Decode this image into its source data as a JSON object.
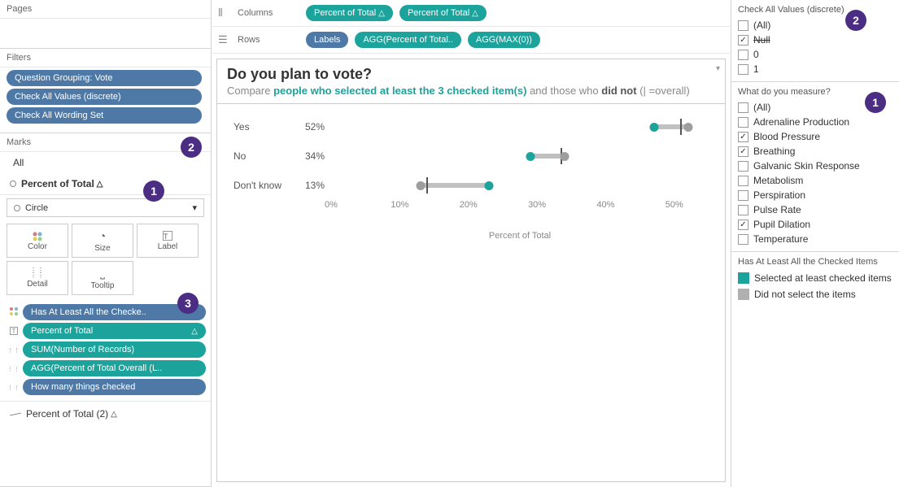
{
  "shelves": {
    "pages_label": "Pages",
    "filters_label": "Filters",
    "marks_label": "Marks",
    "columns_label": "Columns",
    "rows_label": "Rows",
    "columns_pills": [
      {
        "text": "Percent of Total",
        "color": "#1ba39c",
        "delta": true
      },
      {
        "text": "Percent of Total",
        "color": "#1ba39c",
        "delta": true
      }
    ],
    "rows_pills": [
      {
        "text": "Labels",
        "color": "#4e79a7"
      },
      {
        "text": "AGG(Percent of Total..",
        "color": "#1ba39c"
      },
      {
        "text": "AGG(MAX(0))",
        "color": "#1ba39c"
      }
    ]
  },
  "filters": [
    {
      "text": "Question Grouping: Vote",
      "color": "#4e79a7"
    },
    {
      "text": "Check All Values (discrete)",
      "color": "#4e79a7"
    },
    {
      "text": "Check All Wording Set",
      "color": "#4e79a7"
    }
  ],
  "marks": {
    "all_label": "All",
    "tab1": "Percent of Total",
    "dropdown": "Circle",
    "buttons": [
      "Color",
      "Size",
      "Label",
      "Detail",
      "Tooltip"
    ],
    "pills": [
      {
        "icon": "color",
        "text": "Has At Least All the Checke..",
        "color": "#4e79a7"
      },
      {
        "icon": "label",
        "text": "Percent of Total",
        "color": "#1ba39c",
        "delta": true
      },
      {
        "icon": "detail",
        "text": "SUM(Number of Records)",
        "color": "#1ba39c"
      },
      {
        "icon": "detail",
        "text": "AGG(Percent of Total Overall (L..",
        "color": "#1ba39c"
      },
      {
        "icon": "detail",
        "text": "How many things checked",
        "color": "#4e79a7"
      }
    ],
    "tab2": "Percent of Total (2)"
  },
  "viz": {
    "title": "Do you plan to vote?",
    "subtitle_pre": "Compare ",
    "subtitle_teal": "people who selected at least the 3 checked item(s)",
    "subtitle_mid": " and those who ",
    "subtitle_bold": "did not",
    "subtitle_end": " (| =overall)",
    "axis_label": "Percent of Total",
    "axis_ticks": [
      "0%",
      "10%",
      "20%",
      "30%",
      "40%",
      "50%"
    ],
    "axis_max": 55,
    "rows": [
      {
        "label": "Yes",
        "pct": "52%",
        "bar_start": 47,
        "bar_end": 52,
        "teal": 47,
        "gray": 52,
        "ref": 51
      },
      {
        "label": "No",
        "pct": "34%",
        "bar_start": 29,
        "bar_end": 34,
        "teal": 29,
        "gray": 34,
        "ref": 33.5
      },
      {
        "label": "Don't know",
        "pct": "13%",
        "bar_start": 13,
        "bar_end": 23,
        "teal": 23,
        "gray": 13,
        "ref": 14
      }
    ]
  },
  "right": {
    "section1_title": "Check All Values (discrete)",
    "section1_items": [
      {
        "label": "(All)",
        "checked": false,
        "strike": false
      },
      {
        "label": "Null",
        "checked": true,
        "strike": true
      },
      {
        "label": "0",
        "checked": false,
        "strike": false
      },
      {
        "label": "1",
        "checked": false,
        "strike": false
      }
    ],
    "section2_title": "What do you measure?",
    "section2_items": [
      {
        "label": "(All)",
        "checked": false
      },
      {
        "label": "Adrenaline Production",
        "checked": false
      },
      {
        "label": "Blood Pressure",
        "checked": true
      },
      {
        "label": "Breathing",
        "checked": true
      },
      {
        "label": "Galvanic Skin Response",
        "checked": false
      },
      {
        "label": "Metabolism",
        "checked": false
      },
      {
        "label": "Perspiration",
        "checked": false
      },
      {
        "label": "Pulse Rate",
        "checked": false
      },
      {
        "label": "Pupil Dilation",
        "checked": true
      },
      {
        "label": "Temperature",
        "checked": false
      }
    ],
    "legend_title": "Has At Least All the Checked Items",
    "legend_items": [
      {
        "color": "#1ba39c",
        "label": "Selected at least checked items"
      },
      {
        "color": "#b0b0b0",
        "label": "Did not select the items"
      }
    ]
  },
  "annotations": {
    "colors": {
      "badge": "#4b2e83"
    }
  }
}
